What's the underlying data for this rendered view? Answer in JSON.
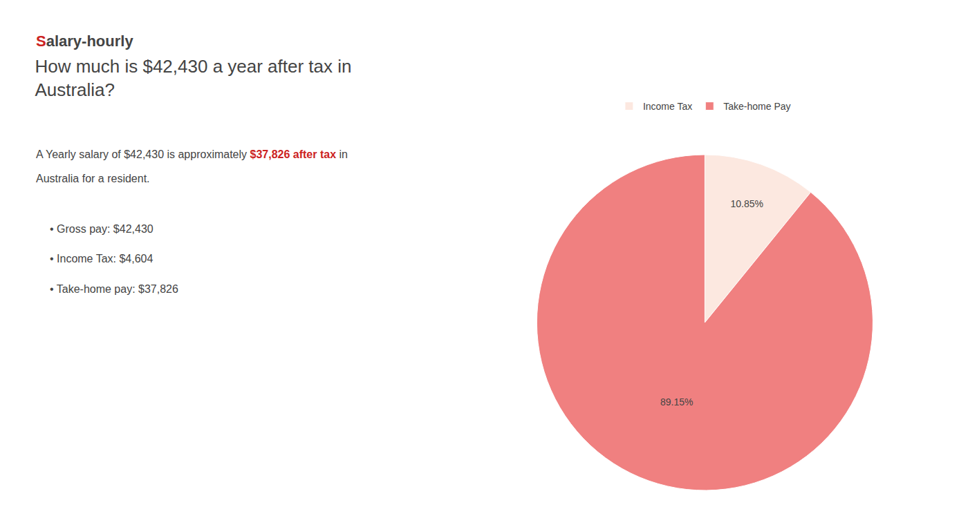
{
  "chart_data": {
    "type": "pie",
    "title": "How much is $42,430 a year after tax in\nAustralia?",
    "categories": [
      "Income Tax",
      "Take-home Pay"
    ],
    "values": [
      10.85,
      89.15
    ],
    "value_labels": [
      "10.85%",
      "89.15%"
    ],
    "colors": [
      "#fce8e0",
      "#f08080"
    ],
    "data_labels": true,
    "legend": "top",
    "annotations": [
      [
        {
          "text": "S",
          "color": "#cc2222"
        },
        {
          "text": "alary-hourly"
        }
      ],
      [
        {
          "text": "A Yearly salary of $42,430 is approximately "
        },
        {
          "text": "$37,826 after tax",
          "color": "#cc2222"
        },
        {
          "text": " in"
        }
      ],
      [
        {
          "text": "Australia for a resident."
        }
      ],
      [
        {
          "text": "• Gross pay: $42,430"
        }
      ],
      [
        {
          "text": "• Income Tax: $4,604"
        }
      ],
      [
        {
          "text": "• Take-home pay: $37,826"
        }
      ]
    ]
  }
}
